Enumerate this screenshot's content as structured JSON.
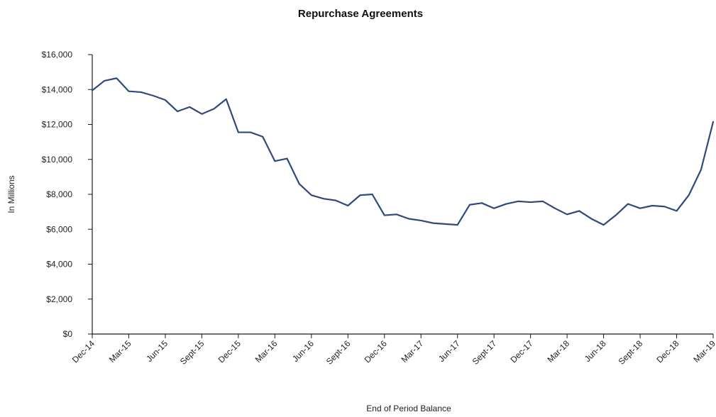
{
  "chart_data": {
    "type": "line",
    "title": "Repurchase Agreements",
    "xlabel": "End of Period Balance",
    "ylabel": "In Millions",
    "ylim": [
      0,
      16000
    ],
    "y_ticks": [
      0,
      2000,
      4000,
      6000,
      8000,
      10000,
      12000,
      14000,
      16000
    ],
    "y_tick_labels": [
      "$0",
      "$2,000",
      "$4,000",
      "$6,000",
      "$8,000",
      "$10,000",
      "$12,000",
      "$14,000",
      "$16,000"
    ],
    "x_tick_labels": [
      "Dec-14",
      "Mar-15",
      "Jun-15",
      "Sept-15",
      "Dec-15",
      "Mar-16",
      "Jun-16",
      "Sept-16",
      "Dec-16",
      "Mar-17",
      "Jun-17",
      "Sept-17",
      "Dec-17",
      "Mar-18",
      "Jun-18",
      "Sept-18",
      "Dec-18",
      "Mar-19"
    ],
    "x": [
      "2014-12",
      "2015-01",
      "2015-02",
      "2015-03",
      "2015-04",
      "2015-05",
      "2015-06",
      "2015-07",
      "2015-08",
      "2015-09",
      "2015-10",
      "2015-11",
      "2015-12",
      "2016-01",
      "2016-02",
      "2016-03",
      "2016-04",
      "2016-05",
      "2016-06",
      "2016-07",
      "2016-08",
      "2016-09",
      "2016-10",
      "2016-11",
      "2016-12",
      "2017-01",
      "2017-02",
      "2017-03",
      "2017-04",
      "2017-05",
      "2017-06",
      "2017-07",
      "2017-08",
      "2017-09",
      "2017-10",
      "2017-11",
      "2017-12",
      "2018-01",
      "2018-02",
      "2018-03",
      "2018-04",
      "2018-05",
      "2018-06",
      "2018-07",
      "2018-08",
      "2018-09",
      "2018-10",
      "2018-11",
      "2018-12",
      "2019-01",
      "2019-02",
      "2019-03"
    ],
    "series": [
      {
        "color": "#2f4a7a",
        "values": [
          13950,
          14500,
          14650,
          13900,
          13850,
          13650,
          13400,
          12750,
          13000,
          12600,
          12900,
          13450,
          11550,
          11550,
          11300,
          9900,
          10050,
          8600,
          7950,
          7750,
          7650,
          7350,
          7950,
          8000,
          6800,
          6850,
          6600,
          6500,
          6350,
          6300,
          6250,
          7400,
          7500,
          7200,
          7450,
          7600,
          7550,
          7600,
          7200,
          6850,
          7050,
          6600,
          6250,
          6800,
          7450,
          7200,
          7350,
          7300,
          7050,
          7950,
          9400,
          12150
        ]
      }
    ],
    "grid": false,
    "legend": "none"
  }
}
